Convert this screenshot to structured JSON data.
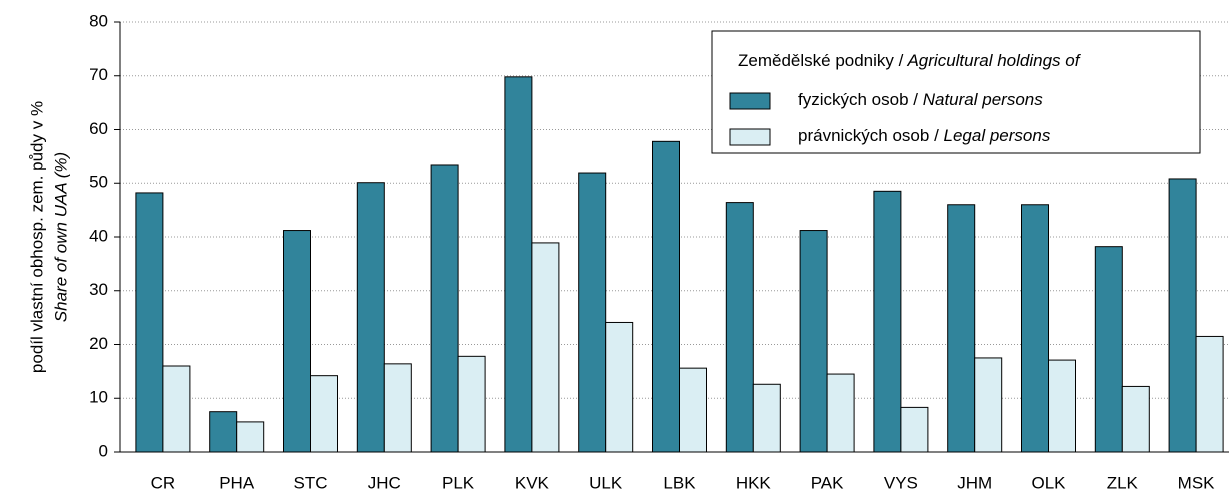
{
  "chart_data": {
    "type": "bar",
    "ylabel": [
      "podíl vlastní obhosp. zem. půdy v %",
      "Share of own UAA (%)"
    ],
    "legend_title": "Zemědělské podniky / Agricultural holdings of",
    "categories": [
      "CR",
      "PHA",
      "STC",
      "JHC",
      "PLK",
      "KVK",
      "ULK",
      "LBK",
      "HKK",
      "PAK",
      "VYS",
      "JHM",
      "OLK",
      "ZLK",
      "MSK"
    ],
    "series": [
      {
        "name": "fyzických osob / Natural persons",
        "color": "#31849b",
        "values": [
          48.2,
          7.5,
          41.2,
          50.1,
          53.4,
          69.8,
          51.9,
          57.8,
          46.4,
          41.2,
          48.5,
          46.0,
          46.0,
          38.2,
          50.8
        ]
      },
      {
        "name": "právnických osob  / Legal persons",
        "color": "#daeef3",
        "values": [
          16.0,
          5.6,
          14.2,
          16.4,
          17.8,
          38.9,
          24.1,
          15.6,
          12.6,
          14.5,
          8.3,
          17.5,
          17.1,
          12.2,
          21.5
        ]
      }
    ],
    "ylim": [
      0,
      80
    ],
    "yticks": [
      0,
      10,
      20,
      30,
      40,
      50,
      60,
      70,
      80
    ],
    "grid": true,
    "legend": "upper right"
  }
}
